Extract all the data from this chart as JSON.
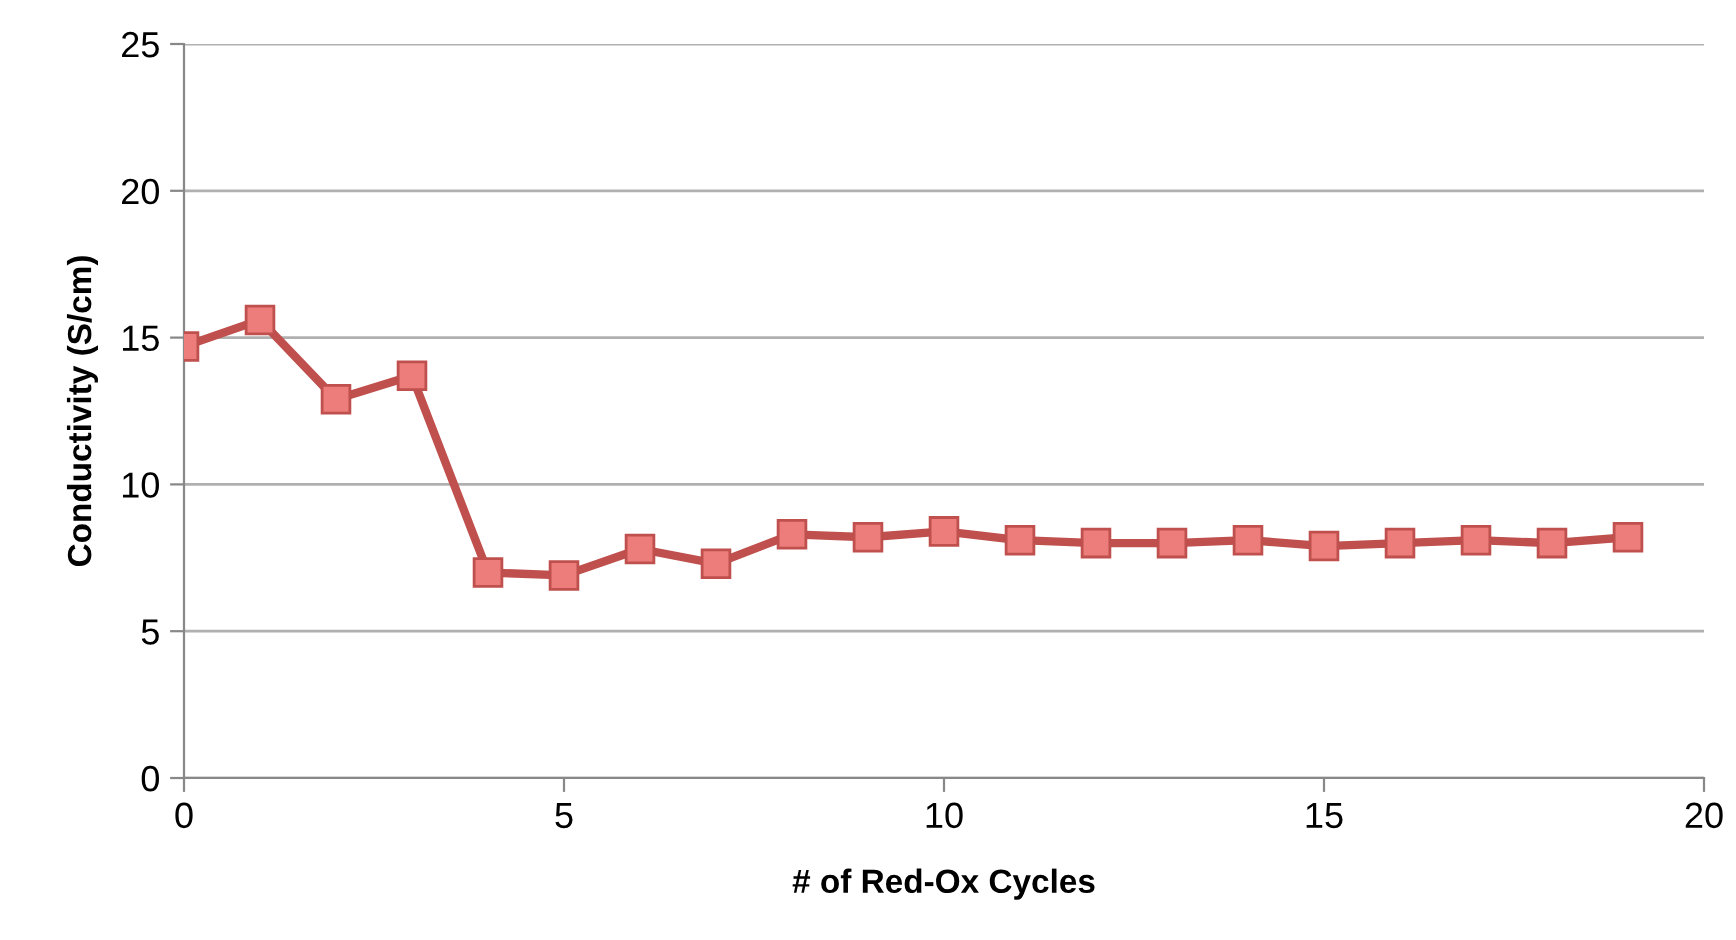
{
  "chart_data": {
    "type": "line",
    "xlabel": "# of Red-Ox Cycles",
    "ylabel": "Conductivity (S/cm)",
    "x": [
      0,
      1,
      2,
      3,
      4,
      5,
      6,
      7,
      8,
      9,
      10,
      11,
      12,
      13,
      14,
      15,
      16,
      17,
      18,
      19
    ],
    "series": [
      {
        "color": "#c0504d",
        "values": [
          14.7,
          15.6,
          12.9,
          13.7,
          7.0,
          6.9,
          7.8,
          7.3,
          8.3,
          8.2,
          8.4,
          8.1,
          8.0,
          8.0,
          8.1,
          7.9,
          8.0,
          8.1,
          8.0,
          8.2
        ]
      }
    ],
    "xlim": [
      0,
      20
    ],
    "xticks": [
      0,
      5,
      10,
      15,
      20
    ],
    "ylim": [
      0,
      25
    ],
    "yticks": [
      0,
      5,
      10,
      15,
      20,
      25
    ],
    "grid": "y",
    "marker": "square",
    "line_style": "solid",
    "legend": false
  }
}
